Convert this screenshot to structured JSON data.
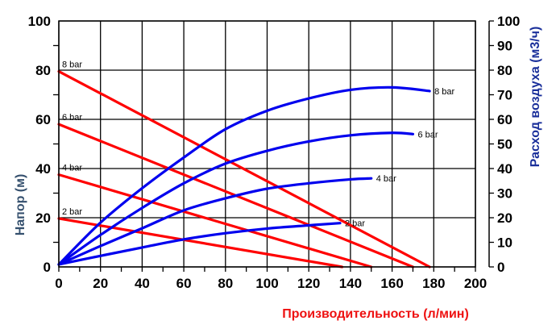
{
  "chart_data": {
    "type": "line",
    "title": "",
    "xlabel": "Производительность (л/мин)",
    "ylabel": "Напор (м)",
    "y2label": "Расход воздуха (м3/ч)",
    "xlim": [
      0,
      200
    ],
    "ylim": [
      0,
      100
    ],
    "y2lim": [
      0,
      100
    ],
    "grid": true,
    "legend": "inline labels",
    "x_ticks": [
      0,
      20,
      40,
      60,
      80,
      100,
      120,
      140,
      160,
      180,
      200
    ],
    "y_ticks": [
      0,
      20,
      40,
      60,
      80,
      100
    ],
    "y2_ticks": [
      0,
      10,
      20,
      30,
      40,
      50,
      60,
      70,
      80,
      90,
      100
    ],
    "colors": {
      "head": "#ff0000",
      "air": "#0000ee",
      "xlabel": "#ee1111",
      "ylabel": "#35506e",
      "y2label": "#1a2f9a"
    },
    "series": [
      {
        "name": "8 bar",
        "axis": "left",
        "kind": "head",
        "label": "8 bar",
        "x": [
          0,
          178
        ],
        "y": [
          79.5,
          0
        ]
      },
      {
        "name": "6 bar",
        "axis": "left",
        "kind": "head",
        "label": "6 bar",
        "x": [
          0,
          170
        ],
        "y": [
          58,
          0
        ]
      },
      {
        "name": "4 bar",
        "axis": "left",
        "kind": "head",
        "label": "4 bar",
        "x": [
          0,
          150
        ],
        "y": [
          37.5,
          0
        ]
      },
      {
        "name": "2 bar",
        "axis": "left",
        "kind": "head",
        "label": "2 bar",
        "x": [
          0,
          136
        ],
        "y": [
          19.7,
          0
        ]
      },
      {
        "name": "8 bar",
        "axis": "right",
        "kind": "air",
        "label": "8 bar",
        "x": [
          0,
          20,
          40,
          60,
          80,
          100,
          120,
          140,
          160,
          178
        ],
        "y": [
          1,
          18,
          32,
          44.5,
          56,
          63.5,
          68.5,
          72,
          73,
          71.5
        ]
      },
      {
        "name": "6 bar",
        "axis": "right",
        "kind": "air",
        "label": "6 bar",
        "x": [
          0,
          20,
          40,
          60,
          80,
          100,
          120,
          140,
          160,
          170
        ],
        "y": [
          1,
          13,
          24,
          34,
          42,
          47.2,
          51,
          53.5,
          54.5,
          54
        ]
      },
      {
        "name": "4 bar",
        "axis": "right",
        "kind": "air",
        "label": "4 bar",
        "x": [
          0,
          20,
          40,
          60,
          80,
          100,
          120,
          140,
          150
        ],
        "y": [
          1,
          8.5,
          15.7,
          23,
          27.9,
          31.8,
          34,
          35.6,
          36
        ]
      },
      {
        "name": "2 bar",
        "axis": "right",
        "kind": "air",
        "label": "2 bar",
        "x": [
          0,
          20,
          40,
          60,
          80,
          100,
          120,
          135
        ],
        "y": [
          1,
          4.5,
          7.9,
          11.2,
          13.7,
          15.6,
          16.9,
          17.8
        ]
      }
    ],
    "head_labels": [
      {
        "text": "8 bar",
        "at_y": 79.5
      },
      {
        "text": "6 bar",
        "at_y": 58
      },
      {
        "text": "4 bar",
        "at_y": 37.5
      },
      {
        "text": "2 bar",
        "at_y": 19.7
      }
    ]
  }
}
